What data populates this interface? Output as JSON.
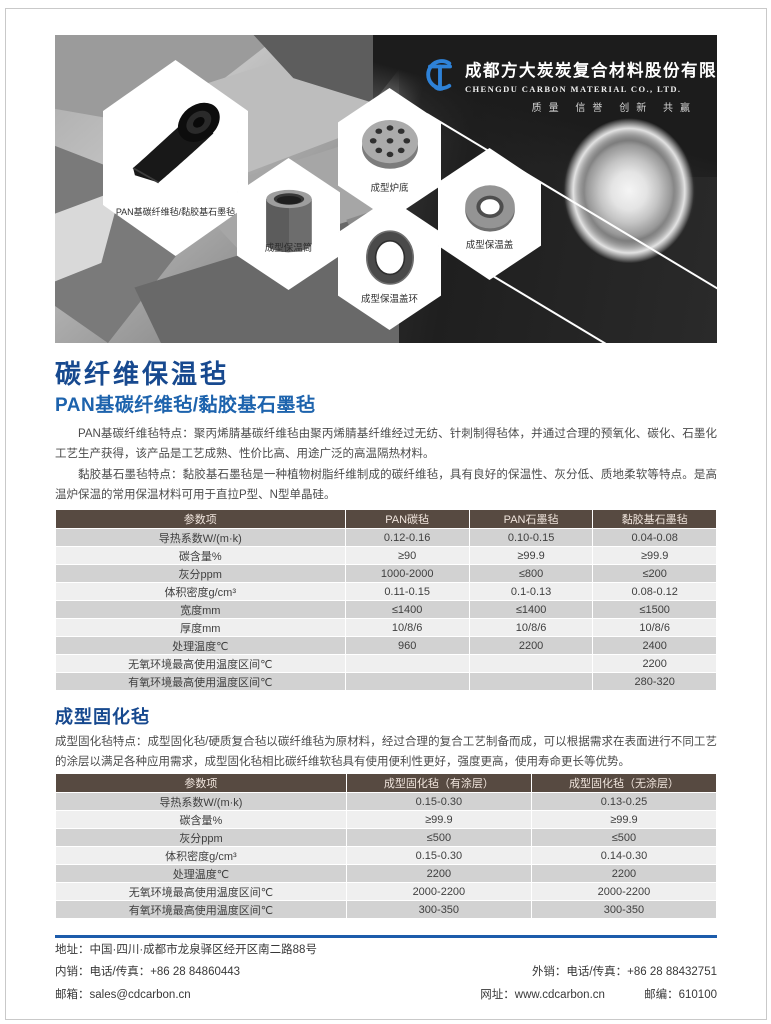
{
  "hero": {
    "company_name_cn": "成都方大炭炭复合材料股份有限公司",
    "company_name_en": "CHENGDU CARBON MATERIAL CO., LTD.",
    "tagline": "质量 信誉 创新 共赢",
    "products": [
      {
        "label": "PAN基碳纤维毡/黏胶基石墨毡"
      },
      {
        "label": "成型保温筒"
      },
      {
        "label": "成型炉底"
      },
      {
        "label": "成型保温盖环"
      },
      {
        "label": "成型保温盖"
      }
    ]
  },
  "section1": {
    "title": "碳纤维保温毡",
    "subtitle": "PAN基碳纤维毡/黏胶基石墨毡",
    "para1": "PAN基碳纤维毡特点：聚丙烯腈基碳纤维毡由聚丙烯腈基纤维经过无纺、针刺制得毡体，并通过合理的预氧化、碳化、石墨化工艺生产获得，该产品是工艺成熟、性价比高、用途广泛的高温隔热材料。",
    "para2": "黏胶基石墨毡特点：黏胶基石墨毡是一种植物树脂纤维制成的碳纤维毡，具有良好的保温性、灰分低、质地柔软等特点。是高温炉保温的常用保温材料可用于直拉P型、N型单晶硅。",
    "table": {
      "headers": [
        "参数项",
        "PAN碳毡",
        "PAN石墨毡",
        "黏胶基石墨毡"
      ],
      "rows": [
        [
          "导热系数W/(m·k)",
          "0.12-0.16",
          "0.10-0.15",
          "0.04-0.08"
        ],
        [
          "碳含量%",
          "≥90",
          "≥99.9",
          "≥99.9"
        ],
        [
          "灰分ppm",
          "1000-2000",
          "≤800",
          "≤200"
        ],
        [
          "体积密度g/cm³",
          "0.11-0.15",
          "0.1-0.13",
          "0.08-0.12"
        ],
        [
          "宽度mm",
          "≤1400",
          "≤1400",
          "≤1500"
        ],
        [
          "厚度mm",
          "10/8/6",
          "10/8/6",
          "10/8/6"
        ],
        [
          "处理温度℃",
          "960",
          "2200",
          "2400"
        ],
        [
          "无氧环境最高使用温度区间℃",
          "",
          "",
          "2200"
        ],
        [
          "有氧环境最高使用温度区间℃",
          "",
          "",
          "280-320"
        ]
      ]
    }
  },
  "section2": {
    "title": "成型固化毡",
    "para": "成型固化毡特点：成型固化毡/硬质复合毡以碳纤维毡为原材料，经过合理的复合工艺制备而成，可以根据需求在表面进行不同工艺的涂层以满足各种应用需求，成型固化毡相比碳纤维软毡具有使用便利性更好，强度更高，使用寿命更长等优势。",
    "table": {
      "headers": [
        "参数项",
        "成型固化毡（有涂层）",
        "成型固化毡（无涂层）"
      ],
      "rows": [
        [
          "导热系数W/(m·k)",
          "0.15-0.30",
          "0.13-0.25"
        ],
        [
          "碳含量%",
          "≥99.9",
          "≥99.9"
        ],
        [
          "灰分ppm",
          "≤500",
          "≤500"
        ],
        [
          "体积密度g/cm³",
          "0.15-0.30",
          "0.14-0.30"
        ],
        [
          "处理温度℃",
          "2200",
          "2200"
        ],
        [
          "无氧环境最高使用温度区间℃",
          "2000-2200",
          "2000-2200"
        ],
        [
          "有氧环境最高使用温度区间℃",
          "300-350",
          "300-350"
        ]
      ]
    }
  },
  "footer": {
    "address": "地址：中国·四川·成都市龙泉驿区经开区南二路88号",
    "domestic": "内销：电话/传真：+86 28 84860443",
    "email": "邮箱：sales@cdcarbon.cn",
    "export": "外销：电话/传真：+86 28 88432751",
    "website": "网址：www.cdcarbon.cn",
    "postcode": "邮编：610100"
  },
  "colors": {
    "title_blue": "#17498f",
    "subtitle_blue": "#1d63ad",
    "table_header_brown": "#574a41",
    "footer_line_blue": "#1d5cab",
    "logo_blue": "#2e82d8",
    "row_dark": "#d2d2d2",
    "row_light": "#efefef"
  }
}
